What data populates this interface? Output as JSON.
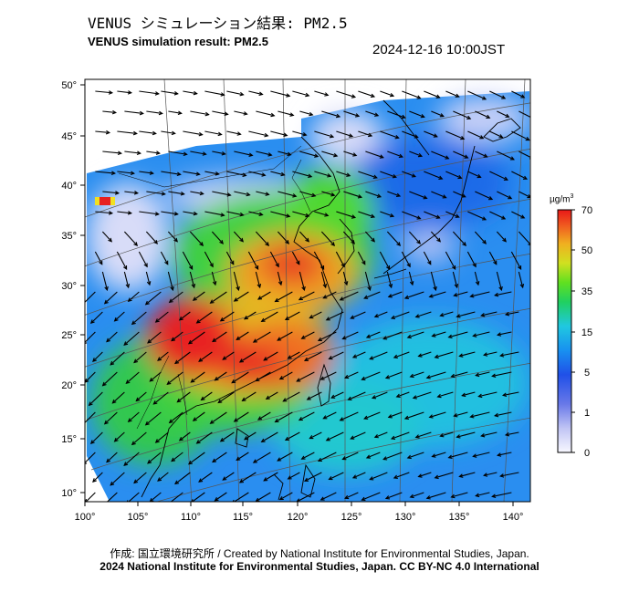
{
  "header": {
    "title_jp": "VENUS シミュレーション結果: PM2.5",
    "title_en": "VENUS simulation result: PM2.5",
    "timestamp": "2024-12-16 10:00JST"
  },
  "map": {
    "lon_labels": [
      "100°",
      "105°",
      "110°",
      "115°",
      "120°",
      "125°",
      "130°",
      "135°",
      "140°"
    ],
    "lat_labels": [
      "50°",
      "45°",
      "40°",
      "35°",
      "30°",
      "25°",
      "20°",
      "15°",
      "10°"
    ],
    "lon_range": [
      100,
      141
    ],
    "lat_range": [
      9,
      51
    ]
  },
  "colorbar": {
    "unit": "µg/m",
    "unit_exponent": "3",
    "labels": [
      "70",
      "50",
      "35",
      "15",
      "5",
      "1",
      "0"
    ],
    "colors": [
      "#f0f0ff",
      "#a0a8f0",
      "#2060f0",
      "#20a0f0",
      "#20d8d0",
      "#20e020",
      "#a0e020",
      "#f0e020",
      "#f08020",
      "#f02020"
    ]
  },
  "footer": {
    "credit_line1": "作成: 国立環境研究所 / Created by National Institute for Environmental Studies, Japan.",
    "credit_line2": "2024 National Institute for Environmental Studies, Japan. CC BY-NC 4.0 International"
  }
}
